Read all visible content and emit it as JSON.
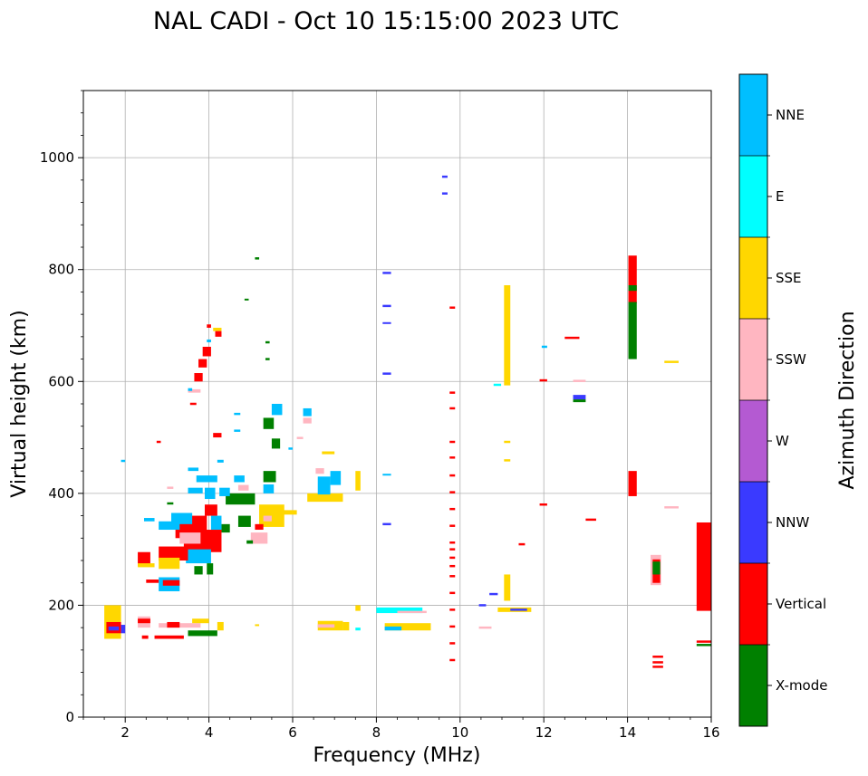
{
  "chart_data": {
    "type": "scatter",
    "title": "NAL CADI - Oct 10 15:15:00 2023 UTC",
    "xlabel": "Frequency (MHz)",
    "ylabel": "Virtual height (km)",
    "xlim": [
      1,
      16
    ],
    "ylim": [
      0,
      1120
    ],
    "xticks": [
      2,
      4,
      6,
      8,
      10,
      12,
      14,
      16
    ],
    "yticks": [
      0,
      200,
      400,
      600,
      800,
      1000
    ],
    "grid": true,
    "colorbar": {
      "label": "Azimuth Direction",
      "categories": [
        "X-mode",
        "Vertical",
        "NNW",
        "W",
        "SSW",
        "SSE",
        "E",
        "NNE"
      ],
      "colors": [
        "#008000",
        "#ff0000",
        "#3a3aff",
        "#b45ad2",
        "#ffb6c1",
        "#ffd700",
        "#00ffff",
        "#00bfff"
      ]
    },
    "segments": [
      {
        "f0": 14.02,
        "f1": 14.22,
        "h0": 395,
        "h1": 440,
        "c": "Vertical"
      },
      {
        "f0": 14.02,
        "f1": 14.22,
        "h0": 740,
        "h1": 825,
        "c": "Vertical"
      },
      {
        "f0": 14.02,
        "f1": 14.22,
        "h0": 640,
        "h1": 742,
        "c": "X-mode"
      },
      {
        "f0": 14.02,
        "f1": 14.22,
        "h0": 762,
        "h1": 772,
        "c": "X-mode"
      },
      {
        "f0": 15.65,
        "f1": 16.0,
        "h0": 190,
        "h1": 348,
        "c": "Vertical"
      },
      {
        "f0": 15.65,
        "f1": 16.0,
        "h0": 133,
        "h1": 137,
        "c": "Vertical"
      },
      {
        "f0": 15.65,
        "f1": 16.0,
        "h0": 127,
        "h1": 131,
        "c": "X-mode"
      },
      {
        "f0": 14.55,
        "f1": 14.8,
        "h0": 236,
        "h1": 290,
        "c": "SSW"
      },
      {
        "f0": 14.6,
        "f1": 14.78,
        "h0": 240,
        "h1": 282,
        "c": "Vertical"
      },
      {
        "f0": 14.6,
        "f1": 14.78,
        "h0": 255,
        "h1": 278,
        "c": "X-mode"
      },
      {
        "f0": 14.6,
        "f1": 14.85,
        "h0": 88,
        "h1": 92,
        "c": "Vertical"
      },
      {
        "f0": 14.6,
        "f1": 14.85,
        "h0": 96,
        "h1": 100,
        "c": "Vertical"
      },
      {
        "f0": 14.6,
        "f1": 14.85,
        "h0": 106,
        "h1": 110,
        "c": "Vertical"
      },
      {
        "f0": 14.88,
        "f1": 15.22,
        "h0": 373,
        "h1": 377,
        "c": "SSW"
      },
      {
        "f0": 14.88,
        "f1": 15.22,
        "h0": 633,
        "h1": 637,
        "c": "SSE"
      },
      {
        "f0": 11.05,
        "f1": 11.2,
        "h0": 593,
        "h1": 772,
        "c": "SSE"
      },
      {
        "f0": 11.05,
        "f1": 11.2,
        "h0": 208,
        "h1": 255,
        "c": "SSE"
      },
      {
        "f0": 11.05,
        "f1": 11.2,
        "h0": 457,
        "h1": 461,
        "c": "SSE"
      },
      {
        "f0": 11.05,
        "f1": 11.2,
        "h0": 490,
        "h1": 494,
        "c": "SSE"
      },
      {
        "f0": 10.9,
        "f1": 11.7,
        "h0": 188,
        "h1": 196,
        "c": "SSE"
      },
      {
        "f0": 11.2,
        "f1": 11.6,
        "h0": 190,
        "h1": 194,
        "c": "NNW"
      },
      {
        "f0": 10.7,
        "f1": 10.9,
        "h0": 218,
        "h1": 222,
        "c": "NNW"
      },
      {
        "f0": 10.45,
        "f1": 10.62,
        "h0": 198,
        "h1": 202,
        "c": "NNW"
      },
      {
        "f0": 10.45,
        "f1": 10.75,
        "h0": 158,
        "h1": 162,
        "c": "SSW"
      },
      {
        "f0": 10.8,
        "f1": 10.98,
        "h0": 592,
        "h1": 596,
        "c": "E"
      },
      {
        "f0": 11.4,
        "f1": 11.55,
        "h0": 307,
        "h1": 311,
        "c": "Vertical"
      },
      {
        "f0": 11.9,
        "f1": 12.08,
        "h0": 378,
        "h1": 382,
        "c": "Vertical"
      },
      {
        "f0": 11.9,
        "f1": 12.08,
        "h0": 600,
        "h1": 604,
        "c": "Vertical"
      },
      {
        "f0": 11.95,
        "f1": 12.08,
        "h0": 660,
        "h1": 664,
        "c": "NNE"
      },
      {
        "f0": 12.5,
        "f1": 12.85,
        "h0": 676,
        "h1": 680,
        "c": "Vertical"
      },
      {
        "f0": 12.7,
        "f1": 13.0,
        "h0": 563,
        "h1": 568,
        "c": "X-mode"
      },
      {
        "f0": 12.7,
        "f1": 13.0,
        "h0": 568,
        "h1": 576,
        "c": "NNW"
      },
      {
        "f0": 12.7,
        "f1": 13.0,
        "h0": 599,
        "h1": 603,
        "c": "SSW"
      },
      {
        "f0": 13.0,
        "f1": 13.25,
        "h0": 351,
        "h1": 355,
        "c": "Vertical"
      },
      {
        "f0": 8.15,
        "f1": 8.35,
        "h0": 792,
        "h1": 796,
        "c": "NNW"
      },
      {
        "f0": 8.15,
        "f1": 8.35,
        "h0": 733,
        "h1": 737,
        "c": "NNW"
      },
      {
        "f0": 8.15,
        "f1": 8.35,
        "h0": 703,
        "h1": 706,
        "c": "NNW"
      },
      {
        "f0": 8.15,
        "f1": 8.35,
        "h0": 612,
        "h1": 616,
        "c": "NNW"
      },
      {
        "f0": 8.15,
        "f1": 8.35,
        "h0": 343,
        "h1": 347,
        "c": "NNW"
      },
      {
        "f0": 8.15,
        "f1": 8.35,
        "h0": 432,
        "h1": 435,
        "c": "NNE"
      },
      {
        "f0": 8.0,
        "f1": 9.1,
        "h0": 186,
        "h1": 196,
        "c": "E"
      },
      {
        "f0": 8.5,
        "f1": 9.2,
        "h0": 186,
        "h1": 190,
        "c": "SSW"
      },
      {
        "f0": 8.2,
        "f1": 9.3,
        "h0": 155,
        "h1": 168,
        "c": "SSE"
      },
      {
        "f0": 8.2,
        "f1": 8.6,
        "h0": 155,
        "h1": 162,
        "c": "NNE"
      },
      {
        "f0": 9.57,
        "f1": 9.7,
        "h0": 964,
        "h1": 968,
        "c": "NNW"
      },
      {
        "f0": 9.57,
        "f1": 9.7,
        "h0": 934,
        "h1": 938,
        "c": "NNW"
      },
      {
        "f0": 9.75,
        "f1": 9.88,
        "h0": 730,
        "h1": 734,
        "c": "Vertical"
      },
      {
        "f0": 9.75,
        "f1": 9.88,
        "h0": 578,
        "h1": 582,
        "c": "Vertical"
      },
      {
        "f0": 9.75,
        "f1": 9.88,
        "h0": 550,
        "h1": 554,
        "c": "Vertical"
      },
      {
        "f0": 9.75,
        "f1": 9.88,
        "h0": 490,
        "h1": 494,
        "c": "Vertical"
      },
      {
        "f0": 9.75,
        "f1": 9.88,
        "h0": 462,
        "h1": 466,
        "c": "Vertical"
      },
      {
        "f0": 9.75,
        "f1": 9.88,
        "h0": 430,
        "h1": 434,
        "c": "Vertical"
      },
      {
        "f0": 9.75,
        "f1": 9.88,
        "h0": 400,
        "h1": 404,
        "c": "Vertical"
      },
      {
        "f0": 9.75,
        "f1": 9.88,
        "h0": 370,
        "h1": 374,
        "c": "Vertical"
      },
      {
        "f0": 9.75,
        "f1": 9.88,
        "h0": 340,
        "h1": 344,
        "c": "Vertical"
      },
      {
        "f0": 9.75,
        "f1": 9.88,
        "h0": 310,
        "h1": 314,
        "c": "Vertical"
      },
      {
        "f0": 9.75,
        "f1": 9.88,
        "h0": 298,
        "h1": 302,
        "c": "Vertical"
      },
      {
        "f0": 9.75,
        "f1": 9.88,
        "h0": 283,
        "h1": 287,
        "c": "Vertical"
      },
      {
        "f0": 9.75,
        "f1": 9.88,
        "h0": 268,
        "h1": 272,
        "c": "Vertical"
      },
      {
        "f0": 9.75,
        "f1": 9.88,
        "h0": 250,
        "h1": 254,
        "c": "Vertical"
      },
      {
        "f0": 9.75,
        "f1": 9.88,
        "h0": 220,
        "h1": 224,
        "c": "Vertical"
      },
      {
        "f0": 9.75,
        "f1": 9.88,
        "h0": 190,
        "h1": 194,
        "c": "Vertical"
      },
      {
        "f0": 9.75,
        "f1": 9.88,
        "h0": 160,
        "h1": 164,
        "c": "Vertical"
      },
      {
        "f0": 9.75,
        "f1": 9.88,
        "h0": 130,
        "h1": 134,
        "c": "Vertical"
      },
      {
        "f0": 9.75,
        "f1": 9.88,
        "h0": 100,
        "h1": 104,
        "c": "Vertical"
      },
      {
        "f0": 7.5,
        "f1": 7.62,
        "h0": 405,
        "h1": 440,
        "c": "SSE"
      },
      {
        "f0": 7.5,
        "f1": 7.62,
        "h0": 190,
        "h1": 200,
        "c": "SSE"
      },
      {
        "f0": 7.5,
        "f1": 7.62,
        "h0": 155,
        "h1": 160,
        "c": "E"
      },
      {
        "f0": 7.2,
        "f1": 7.35,
        "h0": 155,
        "h1": 170,
        "c": "SSE"
      },
      {
        "f0": 6.6,
        "f1": 7.2,
        "h0": 155,
        "h1": 172,
        "c": "SSE"
      },
      {
        "f0": 6.6,
        "f1": 7.0,
        "h0": 160,
        "h1": 166,
        "c": "SSW"
      },
      {
        "f0": 5.1,
        "f1": 5.2,
        "h0": 163,
        "h1": 166,
        "c": "SSE"
      },
      {
        "f0": 5.1,
        "f1": 5.2,
        "h0": 818,
        "h1": 822,
        "c": "X-mode"
      },
      {
        "f0": 4.85,
        "f1": 4.95,
        "h0": 745,
        "h1": 748,
        "c": "X-mode"
      },
      {
        "f0": 5.35,
        "f1": 5.45,
        "h0": 668,
        "h1": 672,
        "c": "X-mode"
      },
      {
        "f0": 5.35,
        "f1": 5.45,
        "h0": 638,
        "h1": 642,
        "c": "X-mode"
      },
      {
        "f0": 4.2,
        "f1": 4.35,
        "h0": 155,
        "h1": 170,
        "c": "SSE"
      },
      {
        "f0": 3.5,
        "f1": 4.2,
        "h0": 145,
        "h1": 155,
        "c": "X-mode"
      },
      {
        "f0": 2.7,
        "f1": 3.4,
        "h0": 140,
        "h1": 146,
        "c": "Vertical"
      },
      {
        "f0": 2.8,
        "f1": 3.8,
        "h0": 160,
        "h1": 168,
        "c": "SSW"
      },
      {
        "f0": 3.6,
        "f1": 4.0,
        "h0": 168,
        "h1": 176,
        "c": "SSE"
      },
      {
        "f0": 3.0,
        "f1": 3.3,
        "h0": 160,
        "h1": 170,
        "c": "Vertical"
      },
      {
        "f0": 2.3,
        "f1": 2.6,
        "h0": 160,
        "h1": 180,
        "c": "SSW"
      },
      {
        "f0": 2.3,
        "f1": 2.6,
        "h0": 168,
        "h1": 176,
        "c": "Vertical"
      },
      {
        "f0": 2.4,
        "f1": 2.55,
        "h0": 140,
        "h1": 146,
        "c": "Vertical"
      },
      {
        "f0": 1.5,
        "f1": 1.9,
        "h0": 140,
        "h1": 200,
        "c": "SSE"
      },
      {
        "f0": 1.55,
        "f1": 1.9,
        "h0": 150,
        "h1": 170,
        "c": "Vertical"
      },
      {
        "f0": 1.6,
        "f1": 1.85,
        "h0": 155,
        "h1": 162,
        "c": "NNW"
      },
      {
        "f0": 1.9,
        "f1": 2.0,
        "h0": 150,
        "h1": 165,
        "c": "NNW"
      },
      {
        "f0": 1.9,
        "f1": 2.0,
        "h0": 456,
        "h1": 460,
        "c": "NNE"
      },
      {
        "f0": 4.6,
        "f1": 4.75,
        "h0": 510,
        "h1": 514,
        "c": "NNE"
      },
      {
        "f0": 4.6,
        "f1": 4.75,
        "h0": 540,
        "h1": 544,
        "c": "NNE"
      },
      {
        "f0": 5.9,
        "f1": 6.0,
        "h0": 478,
        "h1": 482,
        "c": "NNE"
      },
      {
        "f0": 6.1,
        "f1": 6.25,
        "h0": 497,
        "h1": 501,
        "c": "SSW"
      },
      {
        "f0": 6.25,
        "f1": 6.45,
        "h0": 525,
        "h1": 535,
        "c": "SSW"
      },
      {
        "f0": 6.25,
        "f1": 6.45,
        "h0": 538,
        "h1": 552,
        "c": "NNE"
      },
      {
        "f0": 6.35,
        "f1": 7.2,
        "h0": 385,
        "h1": 400,
        "c": "SSE"
      },
      {
        "f0": 6.6,
        "f1": 6.9,
        "h0": 398,
        "h1": 430,
        "c": "NNE"
      },
      {
        "f0": 6.7,
        "f1": 7.0,
        "h0": 470,
        "h1": 475,
        "c": "SSE"
      },
      {
        "f0": 6.9,
        "f1": 7.15,
        "h0": 415,
        "h1": 440,
        "c": "NNE"
      },
      {
        "f0": 6.55,
        "f1": 6.75,
        "h0": 435,
        "h1": 445,
        "c": "SSW"
      },
      {
        "f0": 5.2,
        "f1": 5.8,
        "h0": 340,
        "h1": 380,
        "c": "SSE"
      },
      {
        "f0": 5.3,
        "f1": 5.5,
        "h0": 350,
        "h1": 360,
        "c": "SSW"
      },
      {
        "f0": 5.0,
        "f1": 5.4,
        "h0": 310,
        "h1": 330,
        "c": "SSW"
      },
      {
        "f0": 5.1,
        "f1": 5.3,
        "h0": 335,
        "h1": 345,
        "c": "Vertical"
      },
      {
        "f0": 5.3,
        "f1": 5.6,
        "h0": 420,
        "h1": 440,
        "c": "X-mode"
      },
      {
        "f0": 5.3,
        "f1": 5.55,
        "h0": 400,
        "h1": 416,
        "c": "NNE"
      },
      {
        "f0": 5.5,
        "f1": 5.75,
        "h0": 540,
        "h1": 560,
        "c": "NNE"
      },
      {
        "f0": 5.3,
        "f1": 5.55,
        "h0": 515,
        "h1": 535,
        "c": "X-mode"
      },
      {
        "f0": 5.5,
        "f1": 5.7,
        "h0": 480,
        "h1": 498,
        "c": "X-mode"
      },
      {
        "f0": 4.4,
        "f1": 5.1,
        "h0": 380,
        "h1": 400,
        "c": "X-mode"
      },
      {
        "f0": 4.6,
        "f1": 4.85,
        "h0": 420,
        "h1": 432,
        "c": "NNE"
      },
      {
        "f0": 4.7,
        "f1": 4.95,
        "h0": 405,
        "h1": 415,
        "c": "SSW"
      },
      {
        "f0": 4.3,
        "f1": 4.5,
        "h0": 330,
        "h1": 345,
        "c": "X-mode"
      },
      {
        "f0": 4.05,
        "f1": 4.3,
        "h0": 335,
        "h1": 360,
        "c": "NNE"
      },
      {
        "f0": 3.9,
        "f1": 4.2,
        "h0": 360,
        "h1": 380,
        "c": "Vertical"
      },
      {
        "f0": 3.7,
        "f1": 4.2,
        "h0": 420,
        "h1": 432,
        "c": "NNE"
      },
      {
        "f0": 3.9,
        "f1": 4.15,
        "h0": 390,
        "h1": 410,
        "c": "NNE"
      },
      {
        "f0": 4.25,
        "f1": 4.5,
        "h0": 395,
        "h1": 410,
        "c": "NNE"
      },
      {
        "f0": 4.1,
        "f1": 4.3,
        "h0": 500,
        "h1": 508,
        "c": "Vertical"
      },
      {
        "f0": 4.2,
        "f1": 4.35,
        "h0": 455,
        "h1": 460,
        "c": "NNE"
      },
      {
        "f0": 3.5,
        "f1": 3.8,
        "h0": 580,
        "h1": 586,
        "c": "SSW"
      },
      {
        "f0": 3.65,
        "f1": 3.85,
        "h0": 600,
        "h1": 615,
        "c": "Vertical"
      },
      {
        "f0": 3.75,
        "f1": 3.95,
        "h0": 625,
        "h1": 640,
        "c": "Vertical"
      },
      {
        "f0": 3.85,
        "f1": 4.05,
        "h0": 645,
        "h1": 662,
        "c": "Vertical"
      },
      {
        "f0": 3.95,
        "f1": 4.05,
        "h0": 670,
        "h1": 675,
        "c": "NNE"
      },
      {
        "f0": 3.95,
        "f1": 4.05,
        "h0": 696,
        "h1": 702,
        "c": "Vertical"
      },
      {
        "f0": 4.1,
        "f1": 4.3,
        "h0": 690,
        "h1": 696,
        "c": "SSE"
      },
      {
        "f0": 4.15,
        "f1": 4.3,
        "h0": 680,
        "h1": 690,
        "c": "Vertical"
      },
      {
        "f0": 3.5,
        "f1": 3.6,
        "h0": 583,
        "h1": 588,
        "c": "NNE"
      },
      {
        "f0": 3.2,
        "f1": 3.95,
        "h0": 320,
        "h1": 360,
        "c": "Vertical"
      },
      {
        "f0": 3.4,
        "f1": 4.3,
        "h0": 295,
        "h1": 335,
        "c": "Vertical"
      },
      {
        "f0": 3.3,
        "f1": 3.8,
        "h0": 310,
        "h1": 330,
        "c": "SSW"
      },
      {
        "f0": 3.45,
        "f1": 4.05,
        "h0": 275,
        "h1": 300,
        "c": "NNE"
      },
      {
        "f0": 3.65,
        "f1": 3.85,
        "h0": 255,
        "h1": 270,
        "c": "X-mode"
      },
      {
        "f0": 3.95,
        "f1": 4.1,
        "h0": 255,
        "h1": 275,
        "c": "X-mode"
      },
      {
        "f0": 2.8,
        "f1": 3.5,
        "h0": 280,
        "h1": 305,
        "c": "Vertical"
      },
      {
        "f0": 2.8,
        "f1": 3.3,
        "h0": 265,
        "h1": 285,
        "c": "SSE"
      },
      {
        "f0": 2.8,
        "f1": 3.3,
        "h0": 225,
        "h1": 250,
        "c": "NNE"
      },
      {
        "f0": 2.9,
        "f1": 3.3,
        "h0": 235,
        "h1": 245,
        "c": "Vertical"
      },
      {
        "f0": 2.3,
        "f1": 2.6,
        "h0": 270,
        "h1": 295,
        "c": "Vertical"
      },
      {
        "f0": 2.3,
        "f1": 2.7,
        "h0": 268,
        "h1": 275,
        "c": "SSE"
      },
      {
        "f0": 2.5,
        "f1": 2.8,
        "h0": 240,
        "h1": 246,
        "c": "Vertical"
      },
      {
        "f0": 2.45,
        "f1": 2.7,
        "h0": 350,
        "h1": 356,
        "c": "NNE"
      },
      {
        "f0": 2.8,
        "f1": 3.3,
        "h0": 335,
        "h1": 350,
        "c": "NNE"
      },
      {
        "f0": 3.1,
        "f1": 3.6,
        "h0": 345,
        "h1": 365,
        "c": "NNE"
      },
      {
        "f0": 3.5,
        "f1": 3.85,
        "h0": 400,
        "h1": 410,
        "c": "NNE"
      },
      {
        "f0": 3.5,
        "f1": 3.75,
        "h0": 440,
        "h1": 446,
        "c": "NNE"
      },
      {
        "f0": 3.0,
        "f1": 3.15,
        "h0": 408,
        "h1": 412,
        "c": "SSW"
      },
      {
        "f0": 3.0,
        "f1": 3.15,
        "h0": 380,
        "h1": 384,
        "c": "X-mode"
      },
      {
        "f0": 2.75,
        "f1": 2.85,
        "h0": 490,
        "h1": 494,
        "c": "Vertical"
      },
      {
        "f0": 3.55,
        "f1": 3.7,
        "h0": 558,
        "h1": 562,
        "c": "Vertical"
      },
      {
        "f0": 4.9,
        "f1": 5.05,
        "h0": 310,
        "h1": 316,
        "c": "X-mode"
      },
      {
        "f0": 4.7,
        "f1": 5.0,
        "h0": 340,
        "h1": 360,
        "c": "X-mode"
      },
      {
        "f0": 5.75,
        "f1": 6.1,
        "h0": 362,
        "h1": 370,
        "c": "SSE"
      }
    ]
  }
}
